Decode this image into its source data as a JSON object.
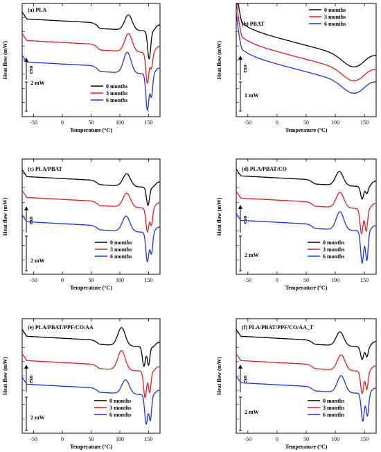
{
  "figure": {
    "xlabel": "Temperature (°C)",
    "ylabel": "Heat flow (mW)",
    "exo_label": "exo",
    "series_colors": [
      "#000000",
      "#e8191b",
      "#1a2ff0"
    ]
  },
  "chart_data": [
    {
      "type": "line",
      "title": "(a)   PLA",
      "xlabel": "Temperature (°C)",
      "ylabel": "Heat flow (mW)",
      "xlim": [
        -70,
        170
      ],
      "xticks": [
        "-50",
        "0",
        "50",
        "100",
        "150"
      ],
      "legend": [
        "0 months",
        "3 months",
        "6 months"
      ],
      "legend_position": "bottom-right",
      "scale_label": "2 mW",
      "series": [
        {
          "name": "0 months",
          "offset": 0
        },
        {
          "name": "3 months",
          "offset": 1
        },
        {
          "name": "6 months",
          "offset": 2
        }
      ]
    },
    {
      "type": "line",
      "title": "(b)   PBAT",
      "xlabel": "Temperature (°C)",
      "ylabel": "Heat flow (mW)",
      "xlim": [
        -70,
        170
      ],
      "xticks": [
        "-50",
        "0",
        "50",
        "100",
        "150"
      ],
      "legend": [
        "0 months",
        "3 months",
        "6 months"
      ],
      "legend_position": "top-right",
      "scale_label": "1 mW",
      "series": [
        {
          "name": "0 months",
          "offset": 0
        },
        {
          "name": "3 months",
          "offset": 1
        },
        {
          "name": "6 months",
          "offset": 2
        }
      ]
    },
    {
      "type": "line",
      "title": "(c)   PLA/PBAT",
      "xlabel": "Temperature (°C)",
      "ylabel": "Heat flow (mW)",
      "xlim": [
        -70,
        170
      ],
      "xticks": [
        "-50",
        "0",
        "50",
        "100",
        "150"
      ],
      "legend": [
        "0 months",
        "3 months",
        "6 months"
      ],
      "legend_position": "bottom-right",
      "scale_label": "2 mW",
      "series": [
        {
          "name": "0 months",
          "offset": 0
        },
        {
          "name": "3 months",
          "offset": 1
        },
        {
          "name": "6 months",
          "offset": 2
        }
      ]
    },
    {
      "type": "line",
      "title": "(d)   PLA/PBAT/CO",
      "xlabel": "Temperature (°C)",
      "ylabel": "Heat flow (mW)",
      "xlim": [
        -70,
        170
      ],
      "xticks": [
        "-50",
        "0",
        "50",
        "100",
        "150"
      ],
      "legend": [
        "0 months",
        "3 months",
        "6 months"
      ],
      "legend_position": "bottom-right",
      "scale_label": "2 mW",
      "series": [
        {
          "name": "0 months",
          "offset": 0
        },
        {
          "name": "3 months",
          "offset": 1
        },
        {
          "name": "6 months",
          "offset": 2
        }
      ]
    },
    {
      "type": "line",
      "title": "(e)   PLA/PBAT/PPF/CO/AA",
      "xlabel": "Temperature (°C)",
      "ylabel": "Heat flow (mW)",
      "xlim": [
        -70,
        170
      ],
      "xticks": [
        "-50",
        "0",
        "50",
        "100",
        "150"
      ],
      "legend": [
        "0 months",
        "3 months",
        "6 months"
      ],
      "legend_position": "bottom-right",
      "scale_label": "2 mW",
      "series": [
        {
          "name": "0 months",
          "offset": 0
        },
        {
          "name": "3 months",
          "offset": 1
        },
        {
          "name": "6 months",
          "offset": 2
        }
      ]
    },
    {
      "type": "line",
      "title": "(f)   PLA/PBAT/PPF/CO/AA_T",
      "xlabel": "Temperature (°C)",
      "ylabel": "Heat flow (mW)",
      "xlim": [
        -70,
        170
      ],
      "xticks": [
        "-50",
        "0",
        "50",
        "100",
        "150"
      ],
      "legend": [
        "0 months",
        "3 months",
        "6 months"
      ],
      "legend_position": "bottom-right",
      "scale_label": "2 mW",
      "series": [
        {
          "name": "0 months",
          "offset": 0
        },
        {
          "name": "3 months",
          "offset": 1
        },
        {
          "name": "6 months",
          "offset": 2
        }
      ]
    }
  ]
}
